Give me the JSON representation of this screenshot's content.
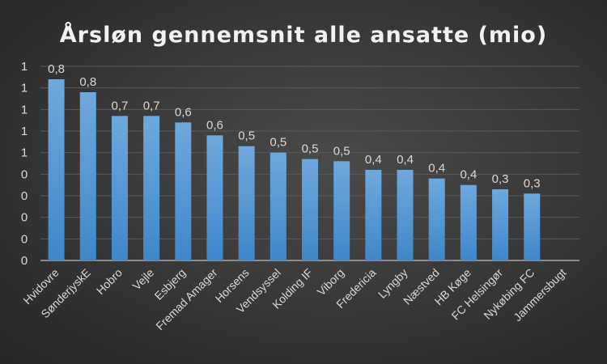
{
  "chart_data": {
    "type": "bar",
    "title": "Årsløn gennemsnit alle ansatte (mio)",
    "xlabel": "",
    "ylabel": "",
    "ylim": [
      0,
      0.9
    ],
    "grid": true,
    "y_ticks": [
      0,
      0.1,
      0.2,
      0.3,
      0.4,
      0.5,
      0.6,
      0.7,
      0.8,
      0.9
    ],
    "y_tick_labels": [
      "0",
      "0",
      "0",
      "0",
      "0",
      "1",
      "1",
      "1",
      "1",
      "1"
    ],
    "categories": [
      "Hvidovre",
      "SønderjyskE",
      "Hobro",
      "Vejle",
      "Esbjerg",
      "Fremad Amager",
      "Horsens",
      "Vendsyssel",
      "Kolding IF",
      "Viborg",
      "Fredericia",
      "Lyngby",
      "Næstved",
      "HB Køge",
      "FC Helsingør",
      "Nykøbing FC",
      "Jammersbugt"
    ],
    "values": [
      0.84,
      0.78,
      0.67,
      0.67,
      0.64,
      0.58,
      0.53,
      0.5,
      0.47,
      0.46,
      0.42,
      0.42,
      0.38,
      0.35,
      0.33,
      0.31,
      0
    ],
    "data_labels": [
      "0,8",
      "0,8",
      "0,7",
      "0,7",
      "0,6",
      "0,6",
      "0,5",
      "0,5",
      "0,5",
      "0,5",
      "0,4",
      "0,4",
      "0,4",
      "0,4",
      "0,3",
      "0,3",
      ""
    ],
    "colors": {
      "bar_top": "#6fa8dc",
      "bar_bottom": "#3f87c9",
      "grid": "#595959",
      "axis": "#a6a6a6"
    }
  }
}
